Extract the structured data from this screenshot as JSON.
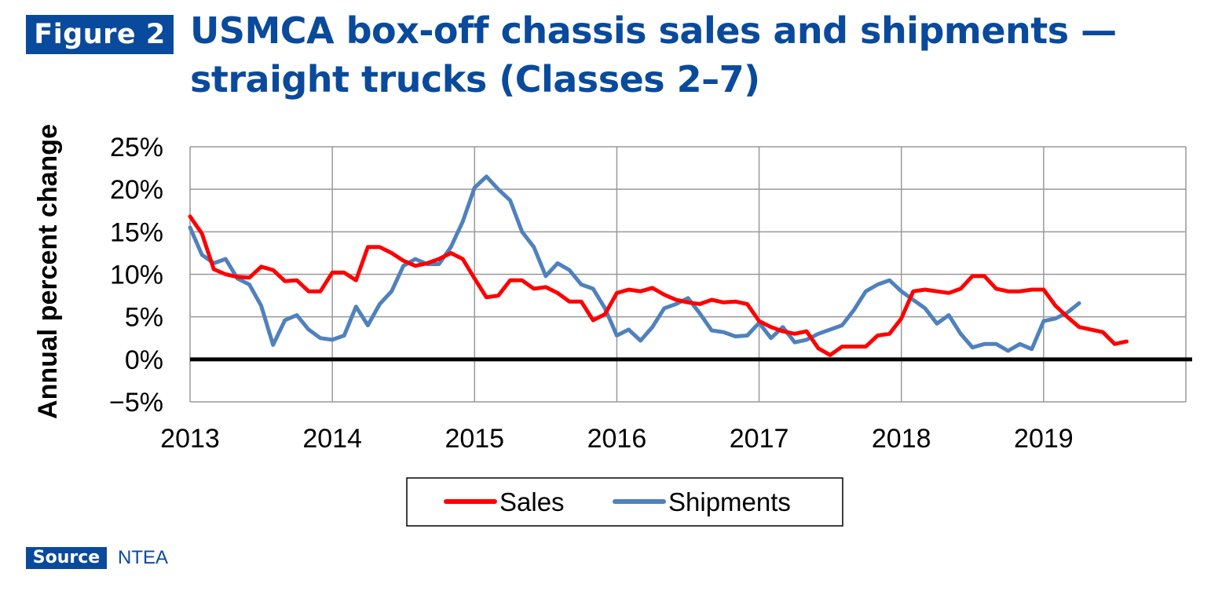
{
  "header": {
    "figure_label": "Figure 2",
    "title_line1": "USMCA box-off chassis sales and shipments —",
    "title_line2": "straight trucks (Classes 2–7)"
  },
  "footer": {
    "source_label": "Source",
    "source_text": "NTEA"
  },
  "colors": {
    "brand": "#0a4a9c",
    "sales": "#ff0000",
    "shipments": "#4f81bd",
    "grid": "#999999",
    "zero_line": "#000000"
  },
  "chart_data": {
    "type": "line",
    "title": "USMCA box-off chassis sales and shipments — straight trucks (Classes 2–7)",
    "xlabel": "",
    "ylabel": "Annual percent change",
    "xlim": [
      2013,
      2020
    ],
    "ylim": [
      -5,
      25
    ],
    "x_ticks": [
      2013,
      2014,
      2015,
      2016,
      2017,
      2018,
      2019
    ],
    "x_tick_labels": [
      "2013",
      "2014",
      "2015",
      "2016",
      "2017",
      "2018",
      "2019"
    ],
    "y_ticks": [
      -5,
      0,
      5,
      10,
      15,
      20,
      25
    ],
    "y_tick_labels": [
      "−5%",
      "0%",
      "5%",
      "10%",
      "15%",
      "20%",
      "25%"
    ],
    "grid": true,
    "legend_position": "bottom",
    "x_start": "2013-01",
    "x_step": "1 month",
    "series": [
      {
        "name": "Sales",
        "color": "#ff0000",
        "values": [
          16.8,
          14.8,
          10.6,
          10.0,
          9.7,
          9.6,
          10.9,
          10.5,
          9.2,
          9.3,
          8.0,
          8.0,
          10.2,
          10.2,
          9.3,
          13.2,
          13.2,
          12.5,
          11.6,
          11.0,
          11.3,
          11.8,
          12.5,
          11.8,
          9.5,
          7.3,
          7.5,
          9.3,
          9.3,
          8.3,
          8.5,
          7.8,
          6.8,
          6.8,
          4.6,
          5.3,
          7.8,
          8.2,
          8.0,
          8.4,
          7.6,
          7.0,
          6.7,
          6.5,
          7.0,
          6.7,
          6.8,
          6.5,
          4.5,
          3.8,
          3.3,
          3.0,
          3.3,
          1.3,
          0.5,
          1.5,
          1.5,
          1.5,
          2.8,
          3.0,
          4.8,
          8.0,
          8.2,
          8.0,
          7.8,
          8.3,
          9.8,
          9.8,
          8.3,
          8.0,
          8.0,
          8.2,
          8.2,
          6.3,
          5.0,
          3.8,
          3.5,
          3.2,
          1.8,
          2.1
        ]
      },
      {
        "name": "Shipments",
        "color": "#4f81bd",
        "values": [
          15.5,
          12.3,
          11.3,
          11.8,
          9.5,
          8.8,
          6.3,
          1.7,
          4.6,
          5.2,
          3.5,
          2.5,
          2.3,
          2.8,
          6.2,
          4.0,
          6.5,
          8.0,
          11.0,
          11.8,
          11.2,
          11.2,
          13.2,
          16.2,
          20.2,
          21.5,
          20.0,
          18.7,
          15.0,
          13.2,
          9.8,
          11.3,
          10.5,
          8.8,
          8.3,
          6.0,
          2.8,
          3.5,
          2.2,
          3.8,
          6.0,
          6.5,
          7.2,
          5.4,
          3.4,
          3.2,
          2.7,
          2.8,
          4.3,
          2.5,
          3.8,
          2.0,
          2.3,
          3.0,
          3.5,
          4.0,
          5.8,
          8.0,
          8.8,
          9.3,
          8.0,
          7.0,
          6.0,
          4.2,
          5.2,
          3.0,
          1.4,
          1.8,
          1.8,
          1.0,
          1.8,
          1.2,
          4.5,
          4.8,
          5.5,
          6.6
        ]
      }
    ]
  }
}
